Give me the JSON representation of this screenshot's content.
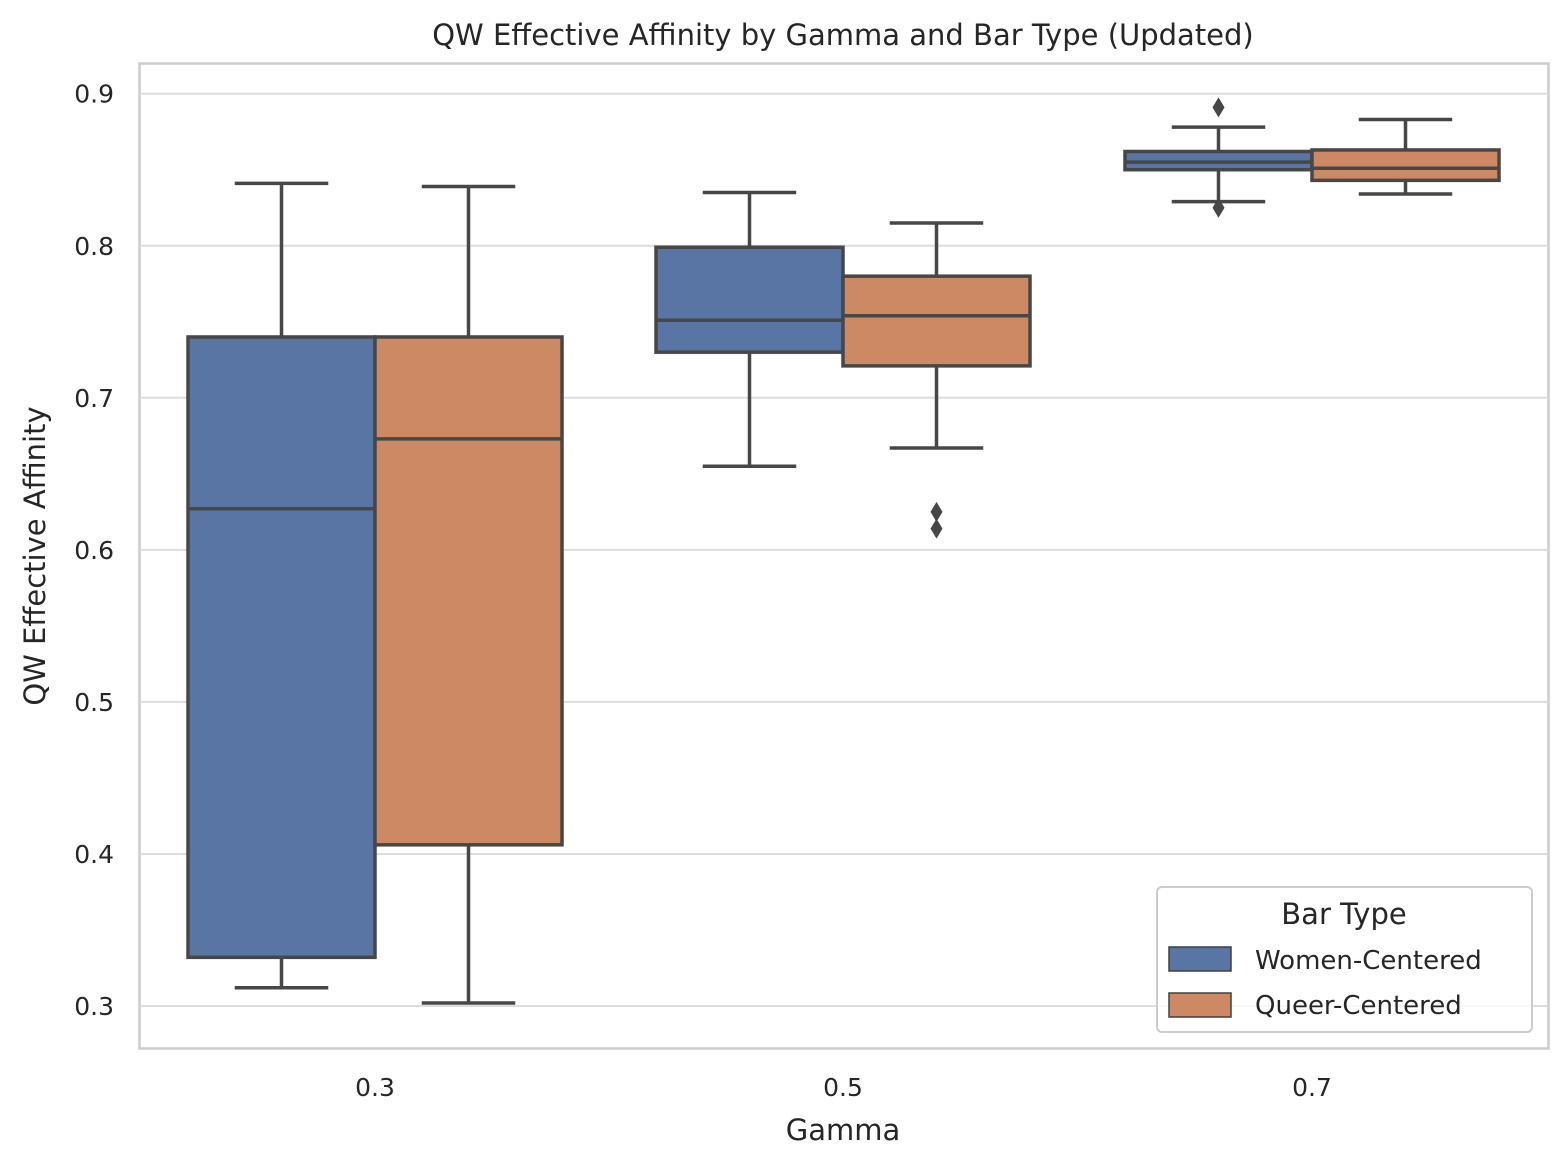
{
  "chart_data": {
    "type": "box",
    "title": "QW Effective Affinity by Gamma and Bar Type (Updated)",
    "xlabel": "Gamma",
    "ylabel": "QW Effective Affinity",
    "categories": [
      "0.3",
      "0.5",
      "0.7"
    ],
    "ylim": [
      0.27,
      0.92
    ],
    "yticks": [
      0.3,
      0.4,
      0.5,
      0.6,
      0.7,
      0.8,
      0.9
    ],
    "ytick_labels": [
      "0.3",
      "0.4",
      "0.5",
      "0.6",
      "0.7",
      "0.8",
      "0.9"
    ],
    "grid": true,
    "legend": {
      "title": "Bar Type",
      "placement": "lower-right"
    },
    "series": [
      {
        "name": "Women-Centered",
        "color": "#5875a4",
        "boxes": [
          {
            "category": "0.3",
            "whisker_low": 0.312,
            "q1": 0.332,
            "median": 0.627,
            "q3": 0.74,
            "whisker_high": 0.841,
            "outliers": []
          },
          {
            "category": "0.5",
            "whisker_low": 0.655,
            "q1": 0.73,
            "median": 0.751,
            "q3": 0.799,
            "whisker_high": 0.835,
            "outliers": []
          },
          {
            "category": "0.7",
            "whisker_low": 0.829,
            "q1": 0.85,
            "median": 0.855,
            "q3": 0.862,
            "whisker_high": 0.878,
            "outliers": [
              0.891,
              0.825
            ]
          }
        ]
      },
      {
        "name": "Queer-Centered",
        "color": "#cc8963",
        "boxes": [
          {
            "category": "0.3",
            "whisker_low": 0.302,
            "q1": 0.406,
            "median": 0.673,
            "q3": 0.74,
            "whisker_high": 0.839,
            "outliers": []
          },
          {
            "category": "0.5",
            "whisker_low": 0.667,
            "q1": 0.721,
            "median": 0.754,
            "q3": 0.78,
            "whisker_high": 0.815,
            "outliers": [
              0.625,
              0.614
            ]
          },
          {
            "category": "0.7",
            "whisker_low": 0.834,
            "q1": 0.843,
            "median": 0.851,
            "q3": 0.863,
            "whisker_high": 0.883,
            "outliers": []
          }
        ]
      }
    ]
  }
}
